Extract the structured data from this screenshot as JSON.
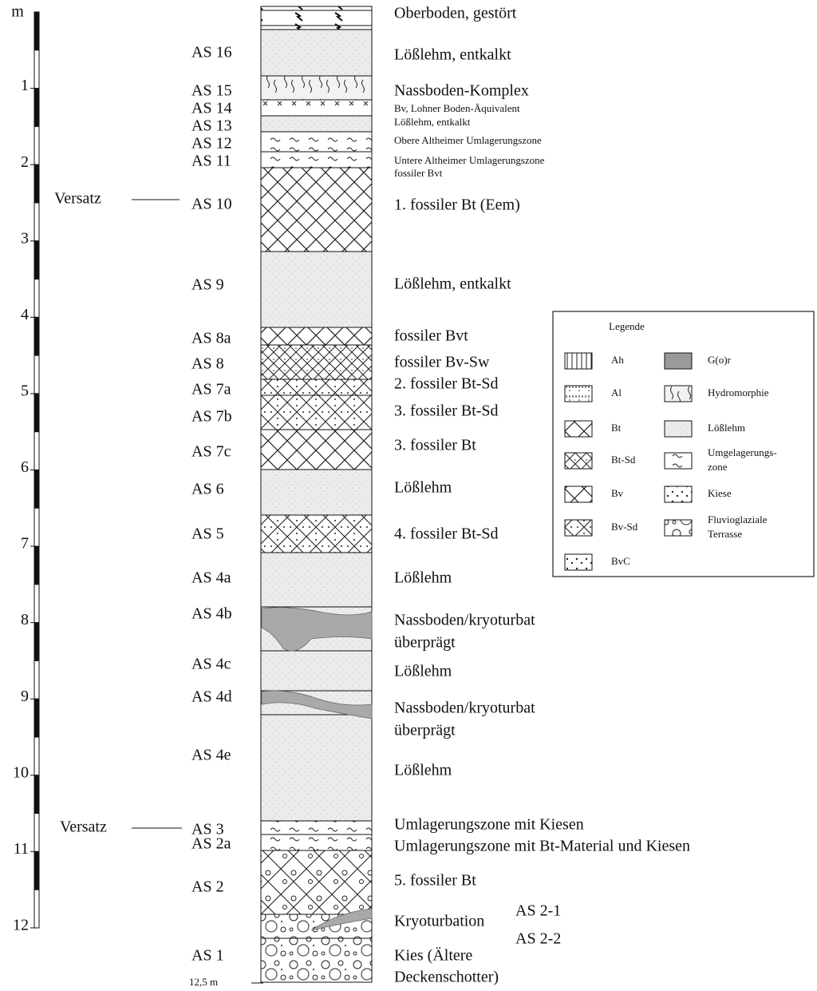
{
  "scale": {
    "unit": "m",
    "labels": [
      "1",
      "2",
      "3",
      "4",
      "5",
      "6",
      "7",
      "8",
      "9",
      "10",
      "11",
      "12"
    ],
    "base_depth": "12,5 m"
  },
  "offsets": [
    "Versatz",
    "Versatz"
  ],
  "layers": [
    {
      "description": [
        "Oberboden, gestört"
      ]
    },
    {
      "code": "AS 16",
      "description": [
        "Lößlehm, entkalkt"
      ]
    },
    {
      "code": "AS 15",
      "description": [
        "Nassboden-Komplex"
      ]
    },
    {
      "code": "AS 14",
      "description": [
        "Bv, Lohner Boden-Äquivalent"
      ]
    },
    {
      "code": "AS 13",
      "description": [
        "Lößlehm, entkalkt"
      ]
    },
    {
      "code": "AS 12",
      "description": [
        "Obere Altheimer Umlagerungszone"
      ]
    },
    {
      "code": "AS 11",
      "description": [
        "Untere Altheimer Umlagerungszone",
        "fossiler Bvt"
      ]
    },
    {
      "code": "AS 10",
      "description": [
        "1. fossiler Bt (Eem)"
      ]
    },
    {
      "code": "AS 9",
      "description": [
        "Lößlehm, entkalkt"
      ]
    },
    {
      "code": "AS 8a",
      "description": [
        "fossiler Bvt"
      ]
    },
    {
      "code": "AS 8",
      "description": [
        "fossiler Bv-Sw"
      ]
    },
    {
      "code": "AS 7a",
      "description": [
        "2. fossiler Bt-Sd"
      ]
    },
    {
      "code": "AS 7b",
      "description": [
        "3. fossiler Bt-Sd"
      ]
    },
    {
      "code": "AS 7c",
      "description": [
        "3. fossiler Bt"
      ]
    },
    {
      "code": "AS 6",
      "description": [
        "Lößlehm"
      ]
    },
    {
      "code": "AS 5",
      "description": [
        "4. fossiler Bt-Sd"
      ]
    },
    {
      "code": "AS 4a",
      "description": [
        "Lößlehm"
      ]
    },
    {
      "code": "AS 4b",
      "description": [
        "Nassboden/kryoturbat",
        "überprägt"
      ]
    },
    {
      "code": "AS 4c",
      "description": [
        "Lößlehm"
      ]
    },
    {
      "code": "AS 4d",
      "description": [
        "Nassboden/kryoturbat",
        "überprägt"
      ]
    },
    {
      "code": "AS 4e",
      "description": [
        "Lößlehm"
      ]
    },
    {
      "code": "AS 3",
      "description": [
        "Umlagerungszone mit Kiesen"
      ]
    },
    {
      "code": "AS 2a",
      "description": [
        "Umlagerungszone mit Bt-Material und Kiesen"
      ]
    },
    {
      "code": "AS 2",
      "description": [
        "5. fossiler Bt"
      ]
    },
    {
      "description": [
        "Kryoturbation"
      ],
      "subcodes": [
        "AS 2-1",
        "AS 2-2"
      ]
    },
    {
      "code": "AS 1",
      "description": [
        "Kies (Ältere",
        "Deckenschotter)"
      ]
    }
  ],
  "legend": {
    "title": "Legende",
    "items": [
      {
        "label": [
          "Ah"
        ]
      },
      {
        "label": [
          "Al"
        ]
      },
      {
        "label": [
          "Bt"
        ]
      },
      {
        "label": [
          "Bt-Sd"
        ]
      },
      {
        "label": [
          "Bv"
        ]
      },
      {
        "label": [
          "Bv-Sd"
        ]
      },
      {
        "label": [
          "BvC"
        ]
      },
      {
        "label": [
          "G(o)r"
        ]
      },
      {
        "label": [
          "Hydromorphie"
        ]
      },
      {
        "label": [
          "Lößlehm"
        ]
      },
      {
        "label": [
          "Umgelagerungs-",
          "zone"
        ]
      },
      {
        "label": [
          "Kiese"
        ]
      },
      {
        "label": [
          "Fluvioglaziale",
          "Terrasse"
        ]
      }
    ]
  }
}
